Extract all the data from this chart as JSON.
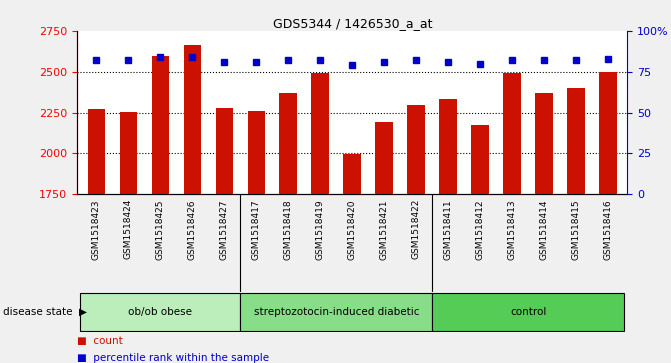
{
  "title": "GDS5344 / 1426530_a_at",
  "samples": [
    "GSM1518423",
    "GSM1518424",
    "GSM1518425",
    "GSM1518426",
    "GSM1518427",
    "GSM1518417",
    "GSM1518418",
    "GSM1518419",
    "GSM1518420",
    "GSM1518421",
    "GSM1518422",
    "GSM1518411",
    "GSM1518412",
    "GSM1518413",
    "GSM1518414",
    "GSM1518415",
    "GSM1518416"
  ],
  "counts": [
    2270,
    2255,
    2595,
    2665,
    2280,
    2260,
    2370,
    2490,
    1995,
    2195,
    2295,
    2330,
    2175,
    2490,
    2370,
    2400,
    2500
  ],
  "percentile_ranks": [
    82,
    82,
    84,
    84,
    81,
    81,
    82,
    82,
    79,
    81,
    82,
    81,
    80,
    82,
    82,
    82,
    83
  ],
  "groups": [
    {
      "label": "ob/ob obese",
      "start": 0,
      "end": 5,
      "color": "#bbeebb"
    },
    {
      "label": "streptozotocin-induced diabetic",
      "start": 5,
      "end": 11,
      "color": "#88dd88"
    },
    {
      "label": "control",
      "start": 11,
      "end": 17,
      "color": "#55cc55"
    }
  ],
  "bar_color": "#cc1100",
  "percentile_color": "#0000cc",
  "ylim_left": [
    1750,
    2750
  ],
  "ylim_right": [
    0,
    100
  ],
  "yticks_left": [
    1750,
    2000,
    2250,
    2500,
    2750
  ],
  "yticks_right": [
    0,
    25,
    50,
    75,
    100
  ],
  "ytick_labels_right": [
    "0",
    "25",
    "50",
    "75",
    "100%"
  ],
  "grid_values": [
    2000,
    2250,
    2500
  ],
  "background_color": "#f0f0f0",
  "plot_bg_color": "#ffffff",
  "tick_area_color": "#d8d8d8",
  "disease_state_label": "disease state",
  "legend_count_label": "count",
  "legend_percentile_label": "percentile rank within the sample"
}
